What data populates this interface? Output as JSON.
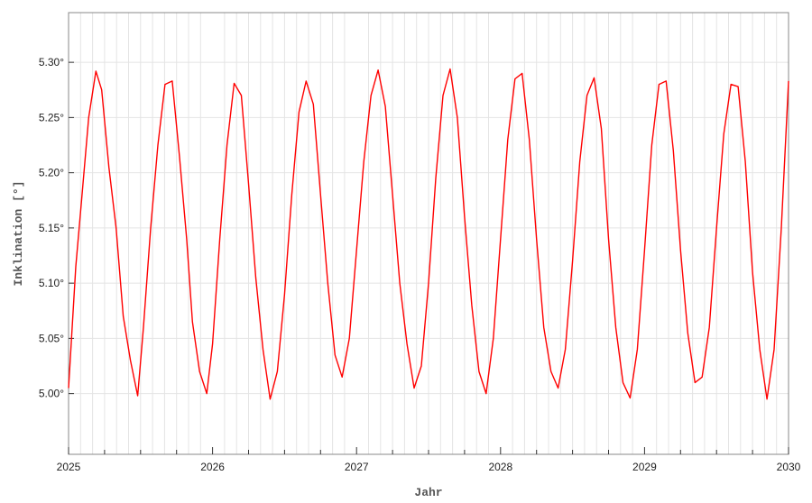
{
  "chart_data": {
    "type": "line",
    "title": "",
    "xlabel": "Jahr",
    "ylabel": "Inklination [°]",
    "xlim": [
      2025,
      2030
    ],
    "ylim": [
      4.945,
      5.345
    ],
    "x_ticks": [
      2025,
      2026,
      2027,
      2028,
      2029,
      2030
    ],
    "x_tick_labels": [
      "2025",
      "2026",
      "2027",
      "2028",
      "2029",
      "2030"
    ],
    "y_ticks": [
      5.0,
      5.05,
      5.1,
      5.15,
      5.2,
      5.25,
      5.3
    ],
    "y_tick_labels": [
      "5.00°",
      "5.05°",
      "5.10°",
      "5.15°",
      "5.20°",
      "5.25°",
      "5.30°"
    ],
    "grid": true,
    "series": [
      {
        "color": "#ff0000",
        "x": [
          2025.0,
          2025.05,
          2025.09,
          2025.14,
          2025.19,
          2025.23,
          2025.28,
          2025.33,
          2025.38,
          2025.43,
          2025.48,
          2025.52,
          2025.57,
          2025.62,
          2025.67,
          2025.72,
          2025.77,
          2025.82,
          2025.86,
          2025.91,
          2025.96,
          2026.0,
          2026.05,
          2026.1,
          2026.15,
          2026.2,
          2026.25,
          2026.3,
          2026.35,
          2026.4,
          2026.45,
          2026.5,
          2026.55,
          2026.6,
          2026.65,
          2026.7,
          2026.75,
          2026.8,
          2026.85,
          2026.9,
          2026.95,
          2027.0,
          2027.05,
          2027.1,
          2027.15,
          2027.2,
          2027.25,
          2027.3,
          2027.35,
          2027.4,
          2027.45,
          2027.5,
          2027.55,
          2027.6,
          2027.65,
          2027.7,
          2027.75,
          2027.8,
          2027.85,
          2027.9,
          2027.95,
          2028.0,
          2028.05,
          2028.1,
          2028.15,
          2028.2,
          2028.25,
          2028.3,
          2028.35,
          2028.4,
          2028.45,
          2028.5,
          2028.55,
          2028.6,
          2028.65,
          2028.7,
          2028.75,
          2028.8,
          2028.85,
          2028.9,
          2028.95,
          2029.0,
          2029.05,
          2029.1,
          2029.15,
          2029.2,
          2029.25,
          2029.3,
          2029.35,
          2029.4,
          2029.45,
          2029.5,
          2029.55,
          2029.6,
          2029.65,
          2029.7,
          2029.75,
          2029.8,
          2029.85,
          2029.9,
          2029.95,
          2030.0
        ],
        "values": [
          5.005,
          5.115,
          5.175,
          5.25,
          5.292,
          5.275,
          5.205,
          5.15,
          5.07,
          5.03,
          4.998,
          5.06,
          5.15,
          5.225,
          5.28,
          5.283,
          5.215,
          5.14,
          5.065,
          5.02,
          5.0,
          5.045,
          5.14,
          5.225,
          5.281,
          5.27,
          5.19,
          5.105,
          5.04,
          4.995,
          5.02,
          5.09,
          5.18,
          5.255,
          5.283,
          5.262,
          5.18,
          5.1,
          5.035,
          5.015,
          5.05,
          5.13,
          5.21,
          5.27,
          5.293,
          5.26,
          5.18,
          5.1,
          5.045,
          5.005,
          5.025,
          5.1,
          5.195,
          5.27,
          5.294,
          5.25,
          5.16,
          5.08,
          5.02,
          5.0,
          5.05,
          5.14,
          5.23,
          5.285,
          5.29,
          5.23,
          5.14,
          5.06,
          5.02,
          5.005,
          5.04,
          5.12,
          5.21,
          5.27,
          5.286,
          5.24,
          5.14,
          5.06,
          5.01,
          4.996,
          5.04,
          5.13,
          5.225,
          5.28,
          5.283,
          5.22,
          5.13,
          5.055,
          5.01,
          5.015,
          5.06,
          5.15,
          5.235,
          5.28,
          5.278,
          5.21,
          5.11,
          5.04,
          4.995,
          5.04,
          5.15,
          5.283
        ]
      }
    ]
  }
}
